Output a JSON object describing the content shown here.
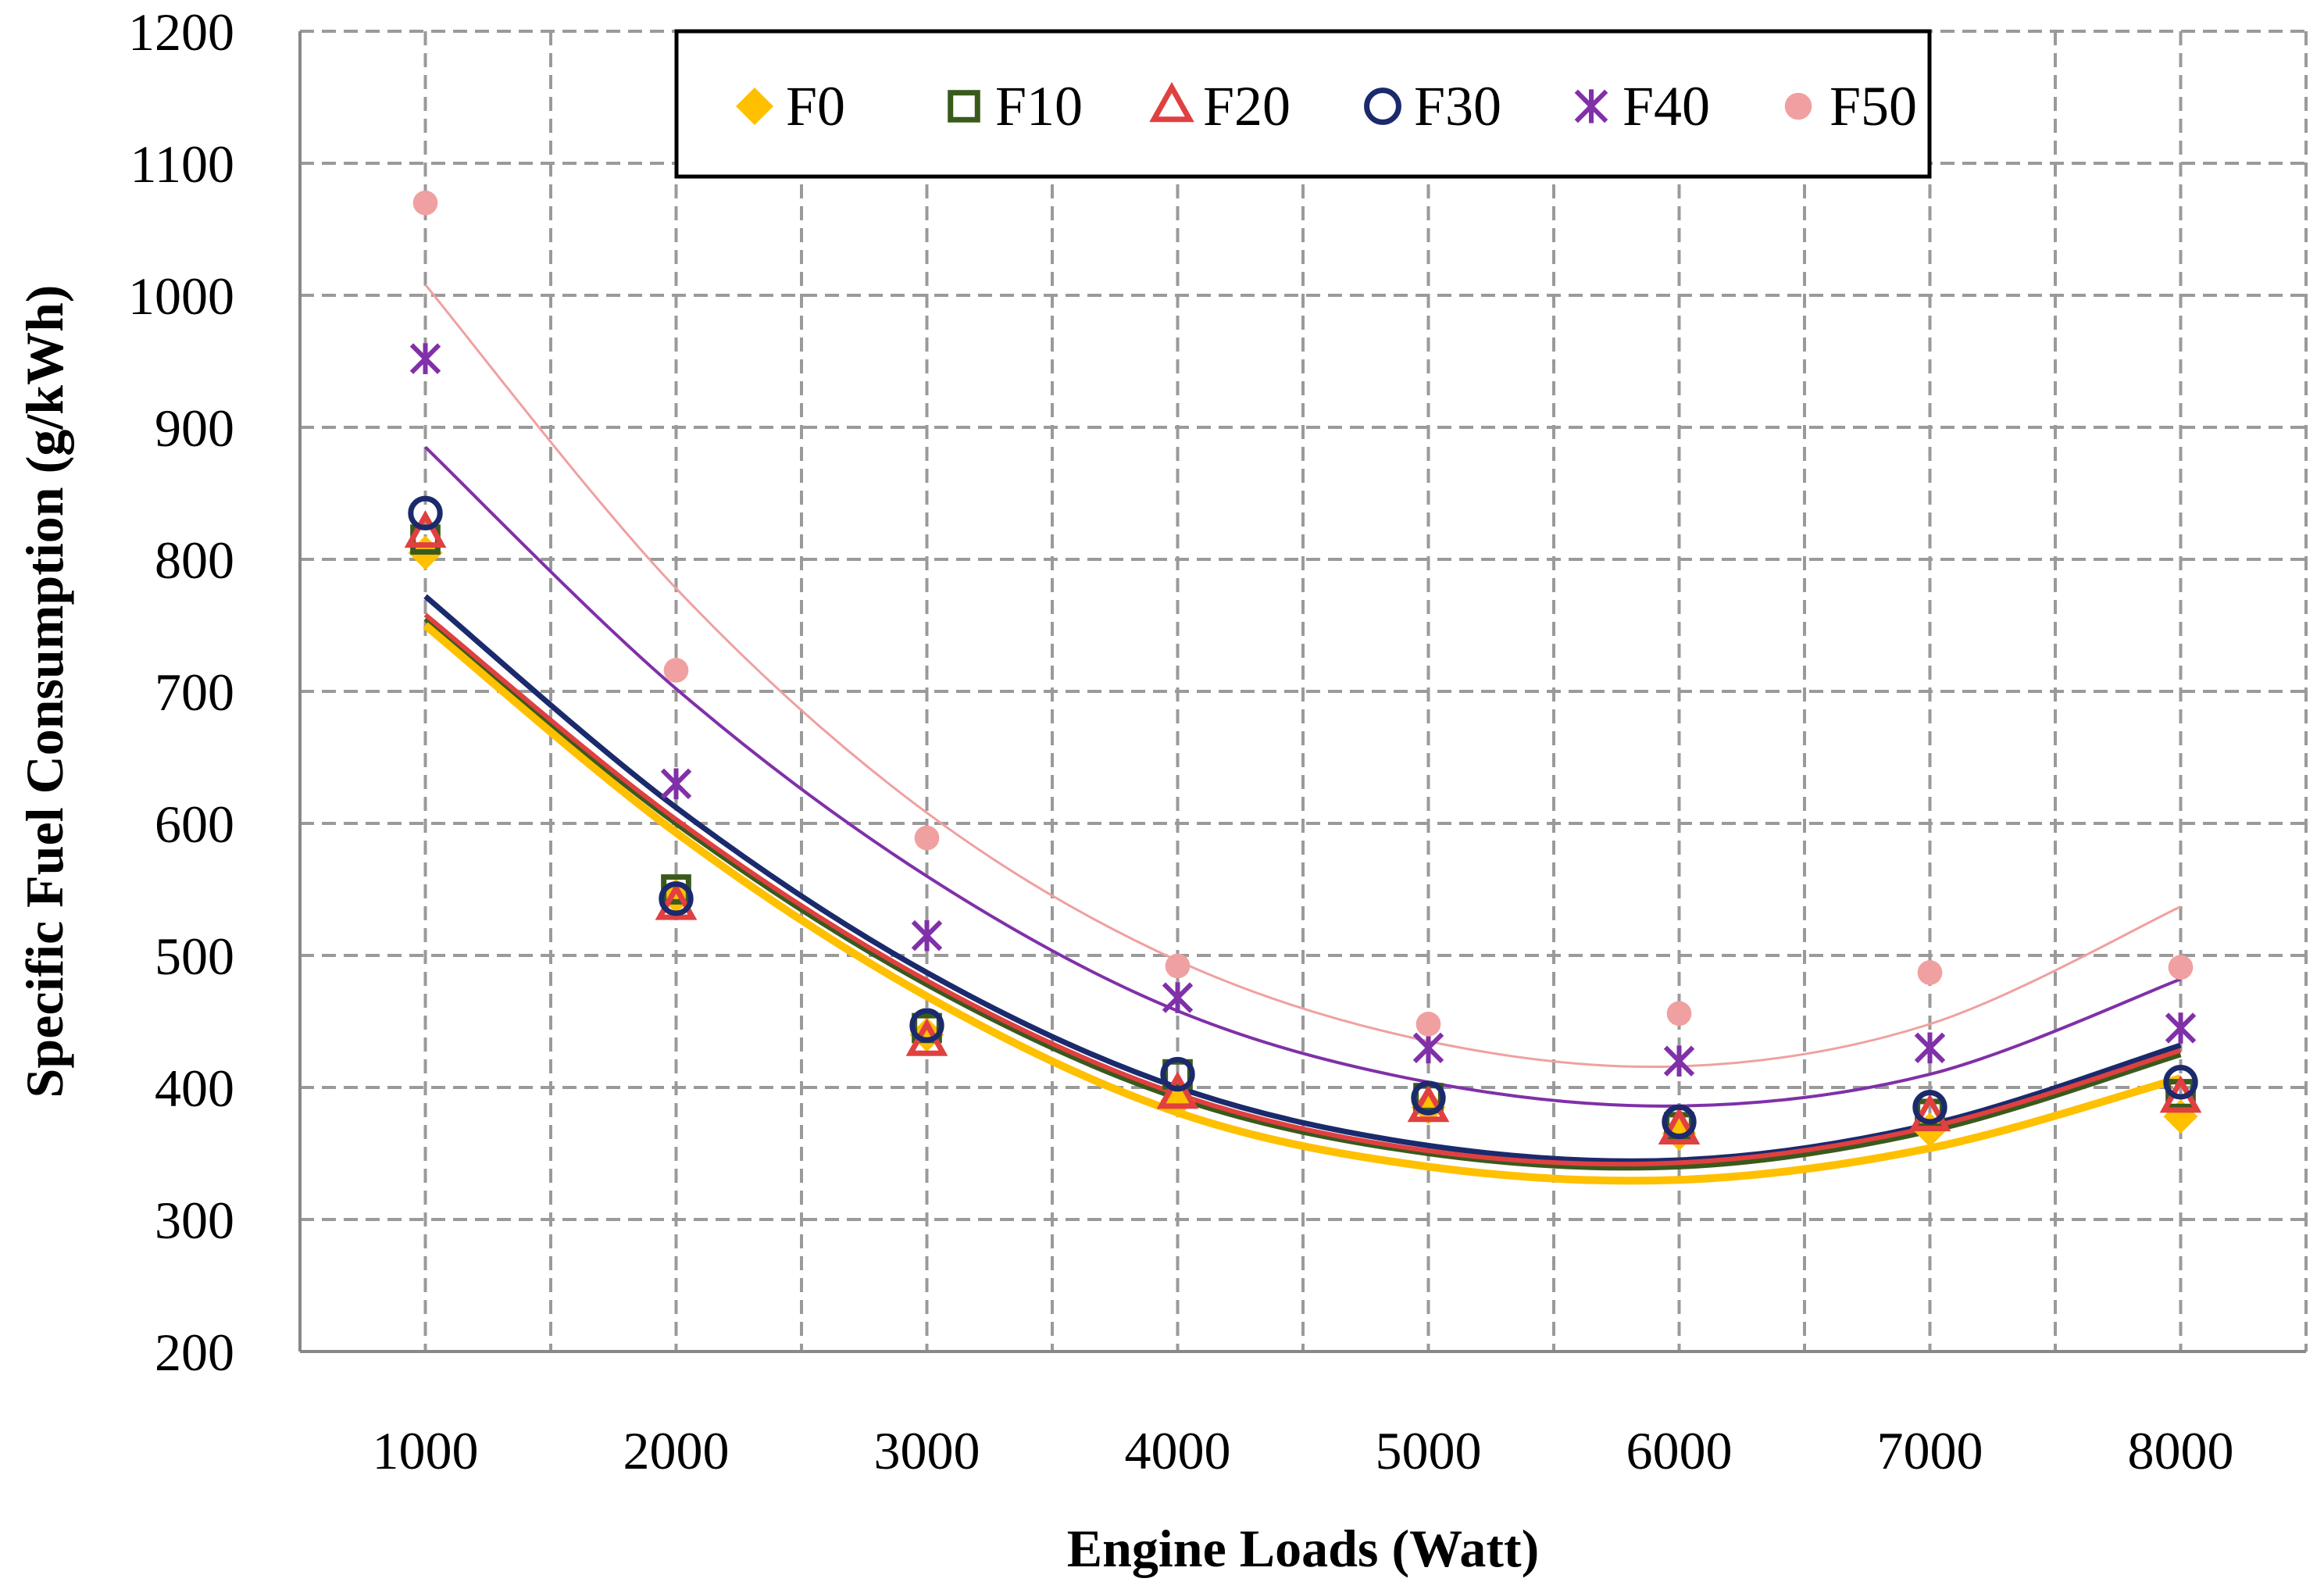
{
  "chart_data": {
    "type": "scatter",
    "xlabel": "Engine Loads (Watt)",
    "ylabel": "Specific Fuel Consumption (g/kWh)",
    "x": [
      1000,
      2000,
      3000,
      4000,
      5000,
      6000,
      7000,
      8000
    ],
    "xlim": [
      500,
      8500
    ],
    "ylim": [
      200,
      1200
    ],
    "xticks": [
      1000,
      2000,
      3000,
      4000,
      5000,
      6000,
      7000,
      8000
    ],
    "yticks": [
      200,
      300,
      400,
      500,
      600,
      700,
      800,
      900,
      1000,
      1100,
      1200
    ],
    "grid": true,
    "legend_position": "top-center",
    "trendline": "polynomial order 2",
    "series": [
      {
        "name": "F0",
        "marker": "diamond",
        "color": "#FFC000",
        "values": [
          805,
          545,
          440,
          390,
          385,
          365,
          368,
          378
        ],
        "trend": [
          750,
          593,
          469,
          381,
          340,
          330,
          354,
          407
        ]
      },
      {
        "name": "F10",
        "marker": "square",
        "color": "#3A5A1C",
        "values": [
          815,
          550,
          445,
          410,
          392,
          370,
          380,
          395
        ],
        "trend": [
          755,
          600,
          478,
          392,
          350,
          340,
          367,
          425
        ]
      },
      {
        "name": "F20",
        "marker": "triangle",
        "color": "#E04040",
        "values": [
          820,
          538,
          435,
          395,
          385,
          368,
          378,
          392
        ],
        "trend": [
          758,
          603,
          481,
          395,
          352,
          343,
          370,
          428
        ]
      },
      {
        "name": "F30",
        "marker": "circle",
        "color": "#1A2A6C",
        "values": [
          835,
          543,
          447,
          410,
          392,
          374,
          385,
          404
        ],
        "trend": [
          772,
          612,
          487,
          400,
          356,
          345,
          372,
          432
        ]
      },
      {
        "name": "F40",
        "marker": "x",
        "color": "#8030A8",
        "values": [
          952,
          630,
          515,
          468,
          430,
          420,
          430,
          445
        ],
        "trend": [
          885,
          702,
          560,
          458,
          404,
          386,
          410,
          482
        ]
      },
      {
        "name": "F50",
        "marker": "dot",
        "color": "#F0A0A0",
        "values": [
          1070,
          716,
          589,
          492,
          448,
          456,
          487,
          491
        ],
        "trend": [
          1008,
          778,
          608,
          496,
          435,
          416,
          448,
          537
        ]
      }
    ]
  }
}
